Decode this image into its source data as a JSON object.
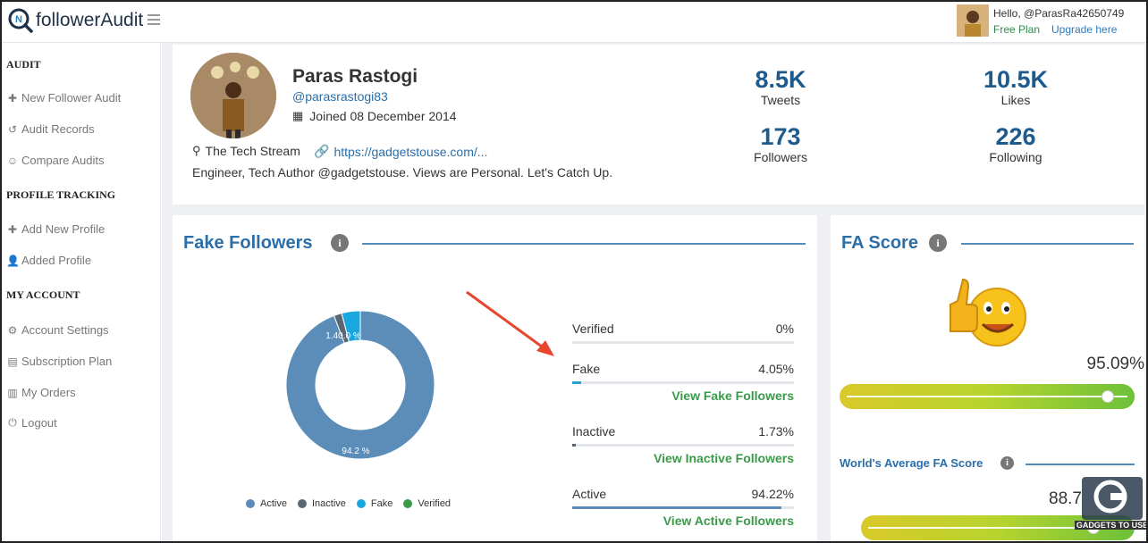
{
  "header": {
    "brand": "followerAudit",
    "hello": "Hello, @ParasRa42650749",
    "plan": "Free Plan",
    "upgrade": "Upgrade here"
  },
  "sidebar": {
    "sections": [
      {
        "title": "AUDIT",
        "items": [
          {
            "label": "New Follower Audit",
            "icon": "plus-icon"
          },
          {
            "label": "Audit Records",
            "icon": "history-icon"
          },
          {
            "label": "Compare Audits",
            "icon": "compare-icon"
          }
        ]
      },
      {
        "title": "PROFILE TRACKING",
        "items": [
          {
            "label": "Add New Profile",
            "icon": "plus-icon"
          },
          {
            "label": "Added Profile",
            "icon": "user-icon"
          }
        ]
      },
      {
        "title": "MY ACCOUNT",
        "items": [
          {
            "label": "Account Settings",
            "icon": "user-gear-icon"
          },
          {
            "label": "Subscription Plan",
            "icon": "document-icon"
          },
          {
            "label": "My Orders",
            "icon": "orders-icon"
          },
          {
            "label": "Logout",
            "icon": "power-icon"
          }
        ]
      }
    ]
  },
  "profile": {
    "name": "Paras Rastogi",
    "handle": "@parasrastogi83",
    "joined": "Joined 08 December 2014",
    "location": "The Tech Stream",
    "link": "https://gadgetstouse.com/...",
    "bio": "Engineer, Tech Author @gadgetstouse. Views are Personal. Let's Catch Up.",
    "stats": [
      {
        "value": "8.5K",
        "label": "Tweets"
      },
      {
        "value": "10.5K",
        "label": "Likes"
      },
      {
        "value": "173",
        "label": "Followers"
      },
      {
        "value": "226",
        "label": "Following"
      }
    ]
  },
  "fake_followers": {
    "title": "Fake Followers",
    "donut_labels": {
      "big": "94.2 %",
      "small": "1.40.0 %"
    },
    "legend": [
      {
        "label": "Active",
        "color": "#5b8db8"
      },
      {
        "label": "Inactive",
        "color": "#5a6670"
      },
      {
        "label": "Fake",
        "color": "#1aa7e0"
      },
      {
        "label": "Verified",
        "color": "#3a9a4a"
      }
    ],
    "rows": [
      {
        "label": "Verified",
        "pct": "0%",
        "value": 0,
        "link": ""
      },
      {
        "label": "Fake",
        "pct": "4.05%",
        "value": 4.05,
        "link": "View Fake Followers"
      },
      {
        "label": "Inactive",
        "pct": "1.73%",
        "value": 1.73,
        "link": "View Inactive Followers"
      },
      {
        "label": "Active",
        "pct": "94.22%",
        "value": 94.22,
        "link": "View Active Followers"
      }
    ]
  },
  "fa_score": {
    "title": "FA Score",
    "score_label": "95.09%",
    "score": 95.09,
    "world_title": "World's Average FA Score",
    "world_label": "88.7",
    "world_score": 88.7
  },
  "watermark": {
    "text": "GADGETS TO USE"
  }
}
